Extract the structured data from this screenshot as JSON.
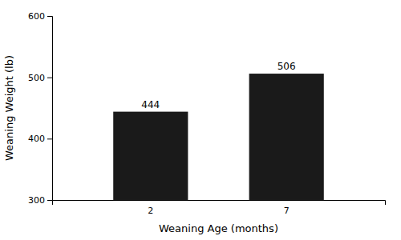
{
  "chart_data": {
    "type": "bar",
    "categories": [
      "2",
      "7"
    ],
    "values": [
      444,
      506
    ],
    "color": "#1a1a1a",
    "xlabel": "Weaning Age (months)",
    "ylabel": "Weaning Weight (lb)",
    "ylim": [
      300,
      600
    ],
    "yticks": [
      300,
      400,
      500,
      600
    ],
    "grid": false,
    "data_labels": true
  }
}
